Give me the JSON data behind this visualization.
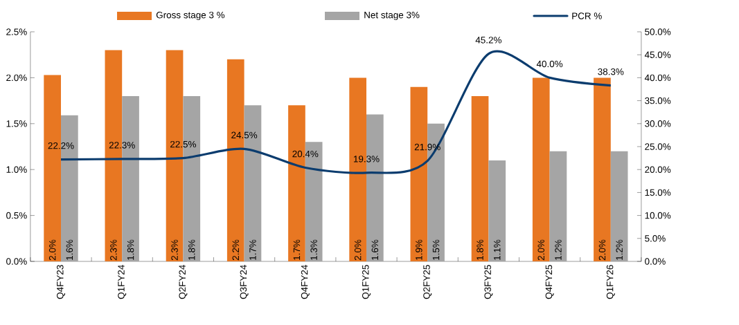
{
  "chart_data": {
    "type": "bar",
    "categories": [
      "Q4FY23",
      "Q1FY24",
      "Q2FY24",
      "Q3FY24",
      "Q4FY24",
      "Q1FY25",
      "Q2FY25",
      "Q3FY25",
      "Q4FY25",
      "Q1FY26"
    ],
    "series": [
      {
        "name": "Gross stage 3 %",
        "color": "#e87722",
        "values": [
          2.03,
          2.3,
          2.3,
          2.2,
          1.7,
          2.0,
          1.9,
          1.8,
          2.0,
          2.0
        ],
        "value_labels": [
          "2.0%",
          "2.3%",
          "2.3%",
          "2.2%",
          "1.7%",
          "2.0%",
          "1.9%",
          "1.8%",
          "2.0%",
          "2.0%"
        ]
      },
      {
        "name": "Net stage 3%",
        "color": "#a5a5a5",
        "values": [
          1.59,
          1.8,
          1.8,
          1.7,
          1.3,
          1.6,
          1.5,
          1.1,
          1.2,
          1.2
        ],
        "value_labels": [
          "1.6%",
          "1.8%",
          "1.8%",
          "1.7%",
          "1.3%",
          "1.6%",
          "1.5%",
          "1.1%",
          "1.2%",
          "1.2%"
        ]
      },
      {
        "name": "PCR %",
        "type": "line",
        "axis": "y2",
        "color": "#0b3c6e",
        "values": [
          22.2,
          22.3,
          22.5,
          24.5,
          20.4,
          19.3,
          21.9,
          45.2,
          40.0,
          38.3
        ],
        "value_labels": [
          "22.2%",
          "22.3%",
          "22.5%",
          "24.5%",
          "20.4%",
          "19.3%",
          "21.9%",
          "45.2%",
          "40.0%",
          "38.3%"
        ]
      }
    ],
    "ylim": [
      0,
      2.5
    ],
    "yticks": [
      {
        "value": 0,
        "label": "0.0%"
      },
      {
        "value": 0.5,
        "label": "0.5%"
      },
      {
        "value": 1.0,
        "label": "1.0%"
      },
      {
        "value": 1.5,
        "label": "1.5%"
      },
      {
        "value": 2.0,
        "label": "2.0%"
      },
      {
        "value": 2.5,
        "label": "2.5%"
      }
    ],
    "y2lim": [
      0,
      50
    ],
    "y2ticks": [
      {
        "value": 0,
        "label": "0.0%"
      },
      {
        "value": 5,
        "label": "5.0%"
      },
      {
        "value": 10,
        "label": "10.0%"
      },
      {
        "value": 15,
        "label": "15.0%"
      },
      {
        "value": 20,
        "label": "20.0%"
      },
      {
        "value": 25,
        "label": "25.0%"
      },
      {
        "value": 30,
        "label": "30.0%"
      },
      {
        "value": 35,
        "label": "35.0%"
      },
      {
        "value": 40,
        "label": "40.0%"
      },
      {
        "value": 45,
        "label": "45.0%"
      },
      {
        "value": 50,
        "label": "50.0%"
      }
    ],
    "legend": "top"
  }
}
